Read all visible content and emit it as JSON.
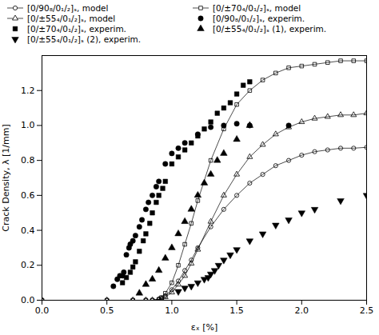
{
  "chart_data": {
    "type": "line",
    "xlabel": "εₓ [%]",
    "ylabel": "Crack Density, λ [1/mm]",
    "xlim": [
      0,
      2.5
    ],
    "ylim": [
      0,
      1.4
    ],
    "xticks": [
      {
        "value": 0,
        "label": "0.0"
      },
      0.5,
      {
        "value": 1.0,
        "label": "1.0"
      },
      1.5,
      {
        "value": 2.0,
        "label": "2.0"
      },
      2.5
    ],
    "yticks": [
      {
        "value": 0,
        "label": "0.0"
      },
      0.2,
      0.4,
      0.6,
      0.8,
      {
        "value": 1.0,
        "label": "1.0"
      },
      1.2
    ],
    "grid": false,
    "series": [
      {
        "name": "[0/90₈/0₁/₂]ₛ, model",
        "type": "line",
        "color": "#000000",
        "marker": "circle-open",
        "line_style": "solid",
        "x": [
          0.0,
          0.5,
          0.7,
          0.8,
          0.85,
          0.9,
          0.92,
          0.95,
          1.0,
          1.05,
          1.1,
          1.15,
          1.2,
          1.3,
          1.4,
          1.5,
          1.6,
          1.7,
          1.8,
          1.9,
          2.0,
          2.1,
          2.2,
          2.3,
          2.4,
          2.5
        ],
        "values": [
          0.0,
          0.0,
          0.0,
          0.0,
          0.0,
          0.005,
          0.01,
          0.025,
          0.06,
          0.11,
          0.17,
          0.23,
          0.3,
          0.42,
          0.52,
          0.6,
          0.67,
          0.72,
          0.77,
          0.8,
          0.83,
          0.85,
          0.86,
          0.87,
          0.87,
          0.875
        ]
      },
      {
        "name": "[0/±70₄/0₁/₂]ₛ, model",
        "type": "line",
        "color": "#000000",
        "marker": "square-open",
        "line_style": "solid",
        "x": [
          0.0,
          0.5,
          0.7,
          0.8,
          0.85,
          0.9,
          0.92,
          0.95,
          1.0,
          1.05,
          1.1,
          1.15,
          1.2,
          1.3,
          1.4,
          1.5,
          1.6,
          1.7,
          1.8,
          1.9,
          2.0,
          2.1,
          2.2,
          2.3,
          2.4,
          2.5
        ],
        "values": [
          0.0,
          0.0,
          0.0,
          0.0,
          0.0,
          0.005,
          0.015,
          0.04,
          0.1,
          0.2,
          0.32,
          0.44,
          0.57,
          0.8,
          0.98,
          1.12,
          1.2,
          1.26,
          1.3,
          1.33,
          1.34,
          1.35,
          1.36,
          1.37,
          1.37,
          1.37
        ]
      },
      {
        "name": "[0/±55₄/0₁/₂]ₛ, model",
        "type": "line",
        "color": "#000000",
        "marker": "triangle-open",
        "line_style": "solid",
        "x": [
          0.0,
          0.5,
          0.7,
          0.8,
          0.85,
          0.9,
          0.92,
          0.95,
          1.0,
          1.05,
          1.1,
          1.15,
          1.2,
          1.3,
          1.4,
          1.5,
          1.6,
          1.7,
          1.8,
          1.9,
          2.0,
          2.1,
          2.2,
          2.3,
          2.4,
          2.5
        ],
        "values": [
          0.0,
          0.0,
          0.0,
          0.0,
          0.0,
          0.003,
          0.008,
          0.018,
          0.045,
          0.09,
          0.14,
          0.21,
          0.29,
          0.45,
          0.6,
          0.72,
          0.82,
          0.89,
          0.95,
          0.99,
          1.02,
          1.04,
          1.05,
          1.06,
          1.06,
          1.07
        ]
      },
      {
        "name": "[0/90₈/0₁/₂]ₛ, experim.",
        "type": "scatter",
        "color": "#000000",
        "marker": "circle",
        "line_style": "none",
        "x": [
          0.55,
          0.58,
          0.6,
          0.62,
          0.63,
          0.65,
          0.67,
          0.68,
          0.7,
          0.72,
          0.75,
          0.77,
          0.8,
          0.82,
          0.85,
          0.88,
          0.9,
          0.95,
          1.0,
          1.05,
          1.1,
          1.2,
          1.3,
          1.4,
          1.5,
          1.6,
          1.9
        ],
        "values": [
          0.08,
          0.12,
          0.14,
          0.14,
          0.16,
          0.26,
          0.3,
          0.32,
          0.34,
          0.37,
          0.42,
          0.46,
          0.52,
          0.56,
          0.6,
          0.65,
          0.68,
          0.78,
          0.84,
          0.87,
          0.9,
          0.95,
          0.99,
          1.0,
          1.01,
          1.0,
          1.0
        ]
      },
      {
        "name": "[0/±70₄/0₁/₂]ₛ, experim.",
        "type": "scatter",
        "color": "#000000",
        "marker": "square",
        "line_style": "none",
        "x": [
          0.62,
          0.65,
          0.68,
          0.7,
          0.72,
          0.75,
          0.78,
          0.8,
          0.83,
          0.85,
          0.88,
          0.9,
          0.93,
          0.95,
          1.0,
          1.05,
          1.1,
          1.15,
          1.2,
          1.25,
          1.3,
          1.35,
          1.4,
          1.45,
          1.5,
          1.55,
          1.6
        ],
        "values": [
          0.1,
          0.13,
          0.16,
          0.19,
          0.22,
          0.28,
          0.34,
          0.38,
          0.44,
          0.5,
          0.56,
          0.6,
          0.64,
          0.68,
          0.78,
          0.82,
          0.86,
          0.9,
          0.94,
          0.98,
          1.02,
          1.07,
          1.1,
          1.13,
          1.18,
          1.23,
          1.25
        ]
      },
      {
        "name": "[0/±55₄/0₁/₂]ₛ (1), experim.",
        "type": "scatter",
        "color": "#000000",
        "marker": "triangle",
        "line_style": "none",
        "x": [
          0.75,
          0.8,
          0.85,
          0.9,
          0.95,
          1.0,
          1.05,
          1.1,
          1.15,
          1.2,
          1.25,
          1.3,
          1.35,
          1.4,
          1.5,
          1.6
        ],
        "values": [
          0.04,
          0.09,
          0.12,
          0.17,
          0.24,
          0.3,
          0.38,
          0.45,
          0.52,
          0.6,
          0.67,
          0.72,
          0.8,
          0.84,
          0.92,
          1.0
        ]
      },
      {
        "name": "[0/±55₄/0₁/₂]ₛ (2), experim.",
        "type": "scatter",
        "color": "#000000",
        "marker": "triangle-down",
        "line_style": "none",
        "x": [
          1.05,
          1.1,
          1.15,
          1.2,
          1.25,
          1.28,
          1.3,
          1.33,
          1.36,
          1.4,
          1.45,
          1.5,
          1.6,
          1.7,
          1.8,
          1.9,
          2.0,
          2.1,
          2.3,
          2.5
        ],
        "values": [
          0.05,
          0.07,
          0.08,
          0.1,
          0.12,
          0.13,
          0.15,
          0.17,
          0.2,
          0.23,
          0.26,
          0.29,
          0.34,
          0.38,
          0.43,
          0.46,
          0.5,
          0.52,
          0.57,
          0.6
        ]
      }
    ]
  }
}
